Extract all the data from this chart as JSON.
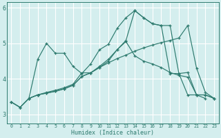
{
  "xlabel": "Humidex (Indice chaleur)",
  "bg_color": "#d4eeee",
  "line_color": "#2d7a6e",
  "grid_color": "#ffffff",
  "xlim": [
    -0.5,
    23.5
  ],
  "ylim": [
    2.75,
    6.15
  ],
  "yticks": [
    3,
    4,
    5,
    6
  ],
  "xticks": [
    0,
    1,
    2,
    3,
    4,
    5,
    6,
    7,
    8,
    9,
    10,
    11,
    12,
    13,
    14,
    15,
    16,
    17,
    18,
    19,
    20,
    21,
    22,
    23
  ],
  "line1_x": [
    0,
    1,
    2,
    3,
    4,
    5,
    6,
    7,
    8,
    9,
    10,
    11,
    12,
    13,
    14,
    15,
    16,
    17,
    18,
    19,
    20,
    21,
    22
  ],
  "line1_y": [
    3.35,
    3.2,
    3.45,
    4.55,
    5.0,
    4.72,
    4.72,
    4.35,
    4.15,
    4.42,
    4.82,
    4.97,
    5.42,
    5.72,
    5.92,
    5.72,
    5.55,
    5.5,
    5.5,
    4.15,
    3.55,
    3.55,
    3.45
  ],
  "line2_x": [
    0,
    1,
    2,
    3,
    4,
    5,
    6,
    7,
    8,
    9,
    10,
    11,
    12,
    13,
    14,
    15,
    16,
    17,
    18,
    19,
    20,
    21,
    22,
    23
  ],
  "line2_y": [
    3.35,
    3.2,
    3.45,
    3.55,
    3.6,
    3.65,
    3.72,
    3.82,
    4.07,
    4.17,
    4.32,
    4.45,
    4.57,
    4.67,
    4.78,
    4.87,
    4.95,
    5.02,
    5.08,
    5.15,
    5.5,
    4.3,
    3.62,
    3.45
  ],
  "line3_x": [
    0,
    1,
    2,
    3,
    4,
    5,
    6,
    7,
    8,
    9,
    10,
    11,
    12,
    13,
    14,
    15,
    16,
    17,
    18,
    19,
    20,
    21,
    22,
    23
  ],
  "line3_y": [
    3.35,
    3.2,
    3.45,
    3.55,
    3.6,
    3.65,
    3.72,
    3.82,
    4.07,
    4.17,
    4.32,
    4.5,
    4.82,
    5.05,
    4.65,
    4.5,
    4.42,
    4.32,
    4.18,
    4.1,
    4.05,
    3.55,
    3.55,
    3.45
  ],
  "line4_x": [
    2,
    3,
    4,
    5,
    6,
    7,
    8,
    9,
    10,
    11,
    12,
    13,
    14,
    15,
    16,
    17,
    18,
    19,
    20,
    21,
    22,
    23
  ],
  "line4_y": [
    3.45,
    3.55,
    3.62,
    3.68,
    3.75,
    3.85,
    4.17,
    4.17,
    4.35,
    4.55,
    4.82,
    5.08,
    5.92,
    5.72,
    5.55,
    5.5,
    4.15,
    4.15,
    4.18,
    3.55,
    3.55,
    3.45
  ]
}
